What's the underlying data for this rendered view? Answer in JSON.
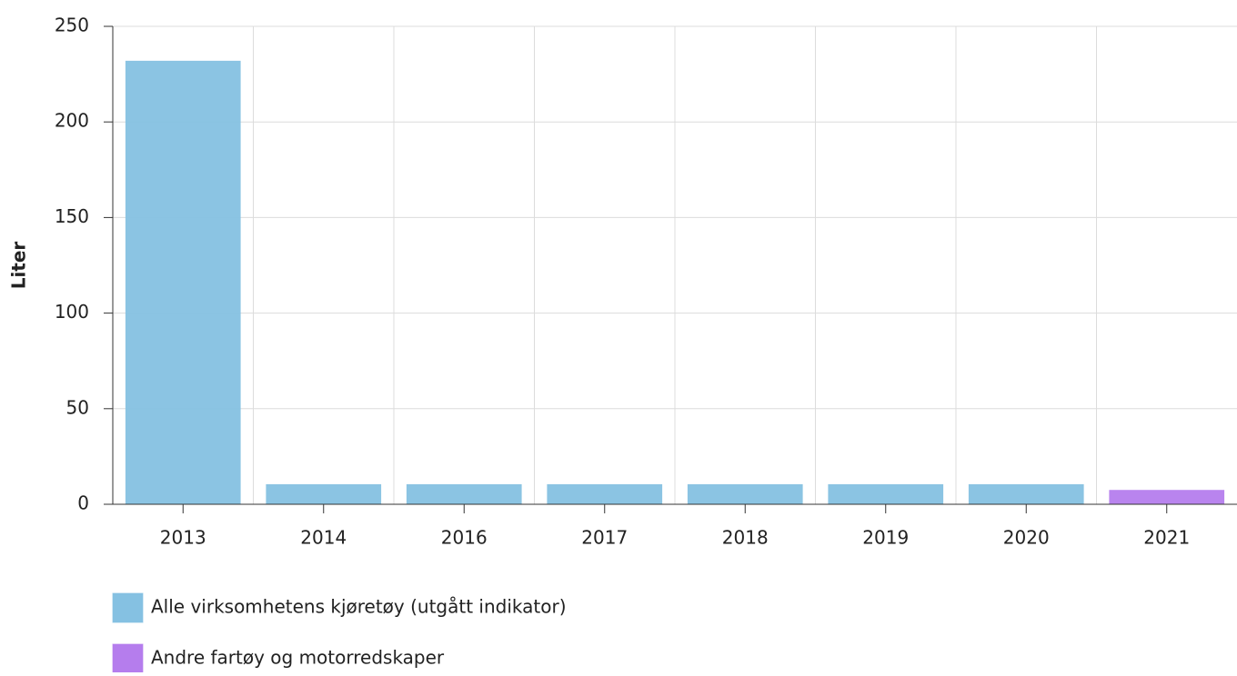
{
  "chart_data": {
    "type": "bar",
    "y_label": "Liter",
    "categories": [
      "2013",
      "2014",
      "2016",
      "2017",
      "2018",
      "2019",
      "2020",
      "2021"
    ],
    "series": [
      {
        "name": "Alle virksomhetens kjøretøy (utgått indikator)",
        "color": "#85c1e2",
        "values": [
          232,
          10.5,
          10.5,
          10.5,
          10.5,
          10.5,
          10.5,
          null
        ]
      },
      {
        "name": "Andre fartøy og motorredskaper",
        "color": "#b57ded",
        "values": [
          null,
          null,
          null,
          null,
          null,
          null,
          null,
          7.5
        ]
      }
    ],
    "ylim": [
      0,
      250
    ],
    "yticks": [
      0,
      50,
      100,
      150,
      200,
      250
    ],
    "grid": true,
    "legend": "bottom"
  }
}
